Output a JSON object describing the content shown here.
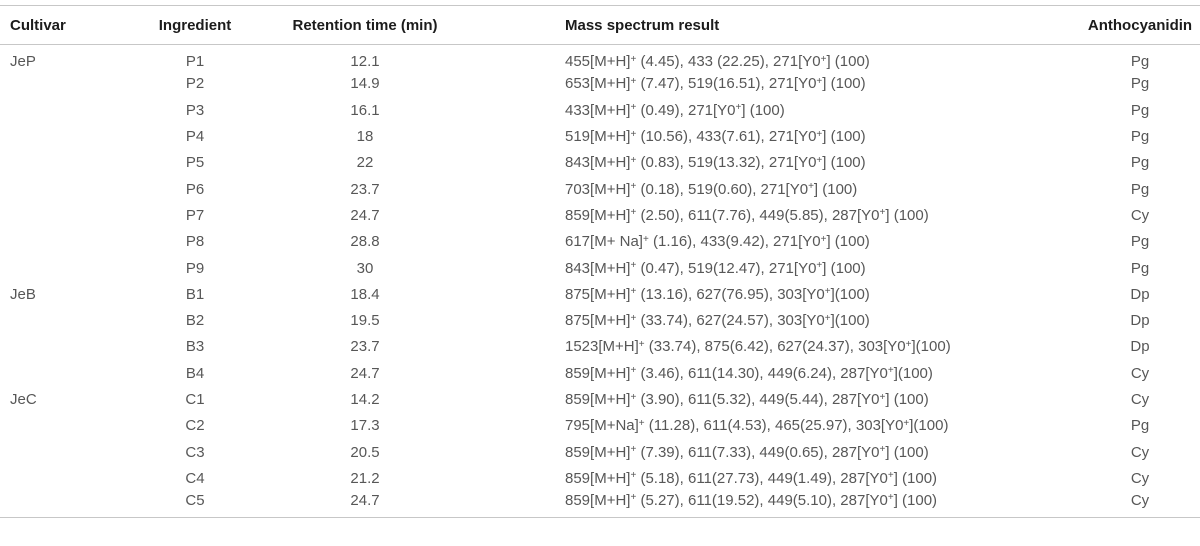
{
  "colors": {
    "rule_color": "#c7c7c7",
    "header_text": "#1c1c1c",
    "body_text": "#575757",
    "page_bg": "#ffffff"
  },
  "table": {
    "columns": [
      {
        "key": "cultivar",
        "label": "Cultivar"
      },
      {
        "key": "ingredient",
        "label": "Ingredient"
      },
      {
        "key": "retention",
        "label": "Retention time (min)"
      },
      {
        "key": "mass",
        "label": "Mass spectrum result"
      },
      {
        "key": "anthocyanidin",
        "label": "Anthocyanidin"
      }
    ],
    "rows": [
      {
        "cultivar": "JeP",
        "ingredient": "P1",
        "retention": "12.1",
        "mass": "455[M+H]^+ (4.45), 433 (22.25), 271[Y0^+] (100)",
        "anthocyanidin": "Pg"
      },
      {
        "cultivar": "",
        "ingredient": "P2",
        "retention": "14.9",
        "mass": "653[M+H]^+ (7.47), 519(16.51), 271[Y0^+] (100)",
        "anthocyanidin": "Pg"
      },
      {
        "cultivar": "",
        "ingredient": "P3",
        "retention": "16.1",
        "mass": "433[M+H]^+ (0.49), 271[Y0^+] (100)",
        "anthocyanidin": "Pg"
      },
      {
        "cultivar": "",
        "ingredient": "P4",
        "retention": "18",
        "mass": "519[M+H]^+ (10.56), 433(7.61), 271[Y0^+] (100)",
        "anthocyanidin": "Pg"
      },
      {
        "cultivar": "",
        "ingredient": "P5",
        "retention": "22",
        "mass": "843[M+H]^+ (0.83), 519(13.32), 271[Y0^+] (100)",
        "anthocyanidin": "Pg"
      },
      {
        "cultivar": "",
        "ingredient": "P6",
        "retention": "23.7",
        "mass": "703[M+H]^+ (0.18), 519(0.60), 271[Y0^+] (100)",
        "anthocyanidin": "Pg"
      },
      {
        "cultivar": "",
        "ingredient": "P7",
        "retention": "24.7",
        "mass": "859[M+H]^+ (2.50), 611(7.76), 449(5.85), 287[Y0^+] (100)",
        "anthocyanidin": "Cy"
      },
      {
        "cultivar": "",
        "ingredient": "P8",
        "retention": "28.8",
        "mass": "617[M+ Na]^+ (1.16), 433(9.42), 271[Y0^+] (100)",
        "anthocyanidin": "Pg"
      },
      {
        "cultivar": "",
        "ingredient": "P9",
        "retention": "30",
        "mass": "843[M+H]^+ (0.47), 519(12.47), 271[Y0^+] (100)",
        "anthocyanidin": "Pg"
      },
      {
        "cultivar": "JeB",
        "ingredient": "B1",
        "retention": "18.4",
        "mass": "875[M+H]^+ (13.16), 627(76.95), 303[Y0^+](100)",
        "anthocyanidin": "Dp"
      },
      {
        "cultivar": "",
        "ingredient": "B2",
        "retention": "19.5",
        "mass": "875[M+H]^+ (33.74), 627(24.57), 303[Y0^+](100)",
        "anthocyanidin": "Dp"
      },
      {
        "cultivar": "",
        "ingredient": "B3",
        "retention": "23.7",
        "mass": "1523[M+H]^+ (33.74), 875(6.42), 627(24.37), 303[Y0^+](100)",
        "anthocyanidin": "Dp"
      },
      {
        "cultivar": "",
        "ingredient": "B4",
        "retention": "24.7",
        "mass": "859[M+H]^+ (3.46), 611(14.30), 449(6.24), 287[Y0^+](100)",
        "anthocyanidin": "Cy"
      },
      {
        "cultivar": "JeC",
        "ingredient": "C1",
        "retention": "14.2",
        "mass": "859[M+H]^+ (3.90), 611(5.32), 449(5.44), 287[Y0^+] (100)",
        "anthocyanidin": "Cy"
      },
      {
        "cultivar": "",
        "ingredient": "C2",
        "retention": "17.3",
        "mass": "795[M+Na]^+ (11.28), 611(4.53), 465(25.97), 303[Y0^+](100)",
        "anthocyanidin": "Pg"
      },
      {
        "cultivar": "",
        "ingredient": "C3",
        "retention": "20.5",
        "mass": "859[M+H]^+ (7.39), 611(7.33), 449(0.65), 287[Y0^+] (100)",
        "anthocyanidin": "Cy"
      },
      {
        "cultivar": "",
        "ingredient": "C4",
        "retention": "21.2",
        "mass": "859[M+H]^+ (5.18), 611(27.73), 449(1.49), 287[Y0^+] (100)",
        "anthocyanidin": "Cy"
      },
      {
        "cultivar": "",
        "ingredient": "C5",
        "retention": "24.7",
        "mass": "859[M+H]^+ (5.27), 611(19.52), 449(5.10), 287[Y0^+] (100)",
        "anthocyanidin": "Cy"
      }
    ]
  }
}
